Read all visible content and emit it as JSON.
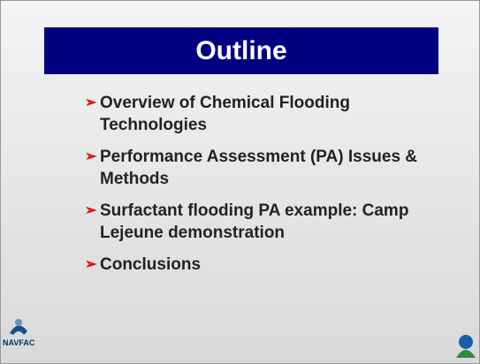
{
  "title": "Outline",
  "bullets": [
    "Overview of Chemical Flooding Technologies",
    "Performance Assessment (PA) Issues & Methods",
    "Surfactant flooding PA example: Camp Lejeune demonstration",
    "Conclusions"
  ],
  "logo": "NAVFAC"
}
